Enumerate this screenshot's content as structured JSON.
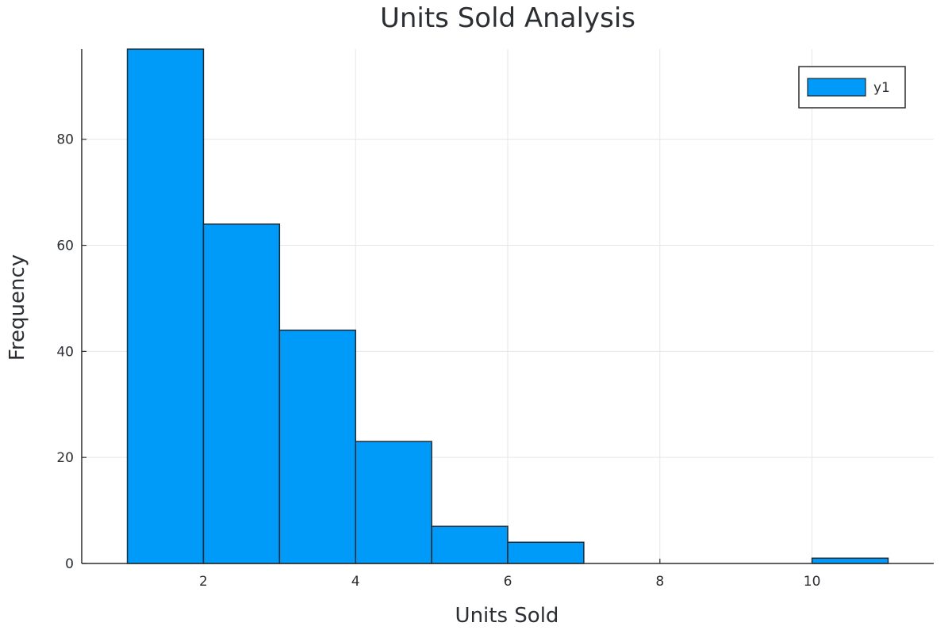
{
  "chart_data": {
    "type": "bar",
    "title": "Units Sold Analysis",
    "xlabel": "Units Sold",
    "ylabel": "Frequency",
    "bins": [
      [
        1,
        2
      ],
      [
        2,
        3
      ],
      [
        3,
        4
      ],
      [
        4,
        5
      ],
      [
        5,
        6
      ],
      [
        6,
        7
      ],
      [
        7,
        8
      ],
      [
        8,
        9
      ],
      [
        9,
        10
      ],
      [
        10,
        11
      ]
    ],
    "values": [
      97,
      64,
      44,
      23,
      7,
      4,
      0,
      0,
      0,
      1
    ],
    "xlim": [
      0.4,
      11.6
    ],
    "ylim": [
      0,
      97
    ],
    "xticks": [
      2,
      4,
      6,
      8,
      10
    ],
    "yticks": [
      0,
      20,
      40,
      60,
      80
    ],
    "grid": true,
    "legend": {
      "position": "top-right",
      "entries": [
        "y1"
      ]
    },
    "series_color": "#009af9"
  }
}
